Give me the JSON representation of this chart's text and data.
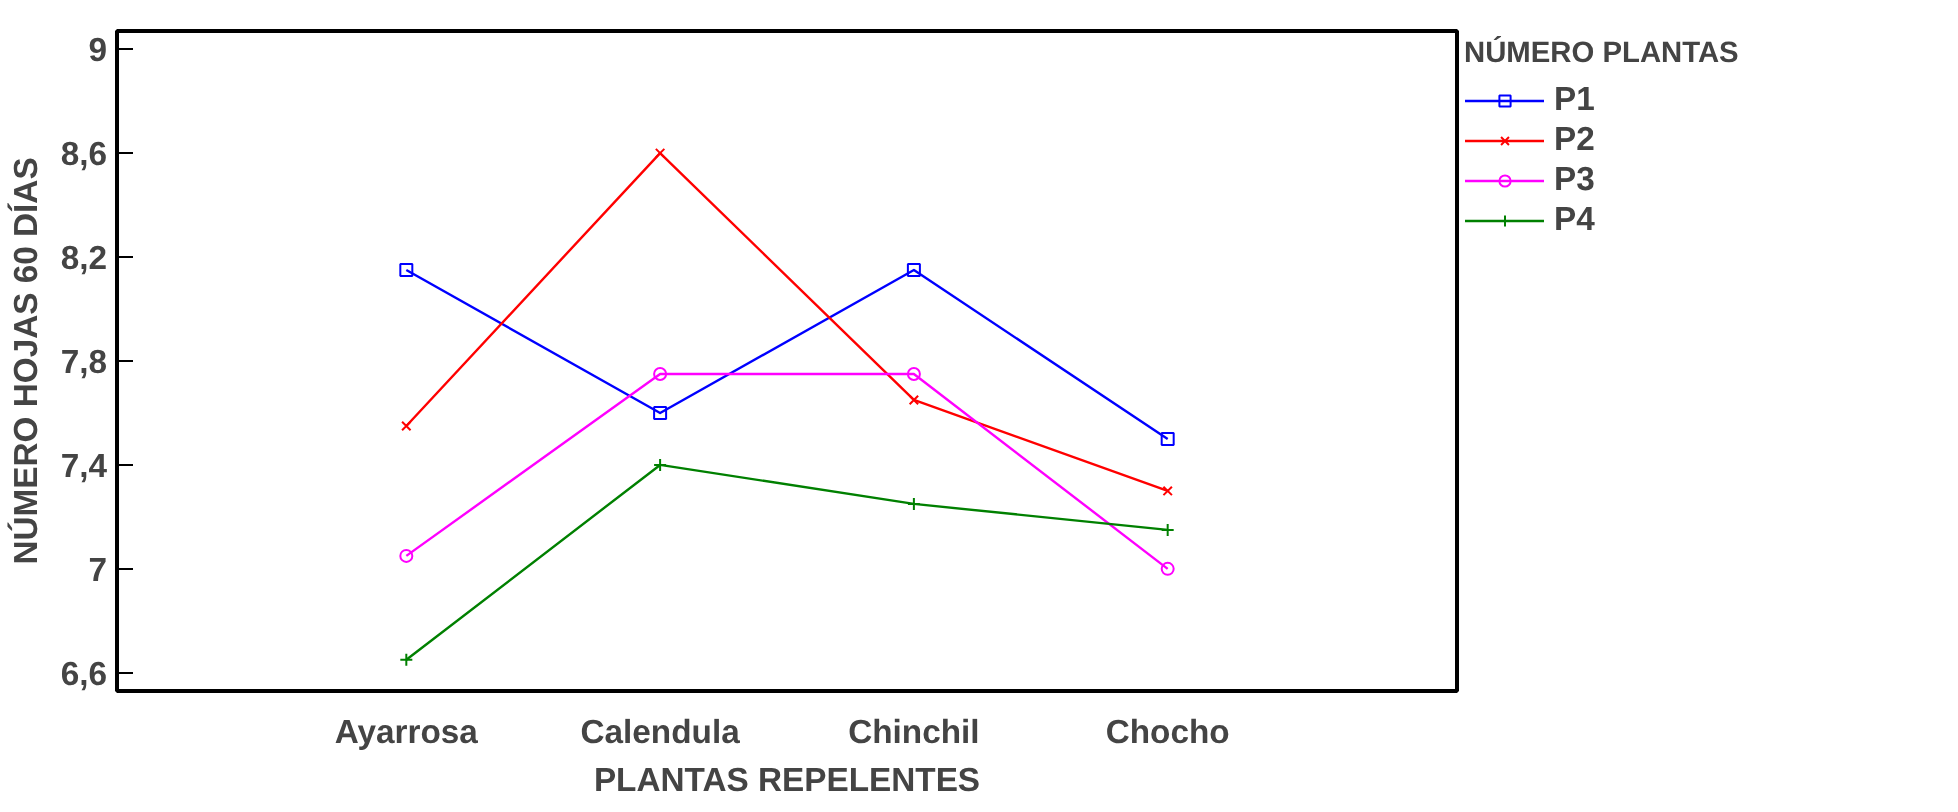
{
  "chart_data": {
    "type": "line",
    "xlabel": "PLANTAS REPELENTES",
    "ylabel": "NÚMERO HOJAS 60 DÍAS",
    "legend_title": "NÚMERO PLANTAS",
    "categories": [
      "Ayarrosa",
      "Calendula",
      "Chinchil",
      "Chocho"
    ],
    "series": [
      {
        "name": "P1",
        "color": "#0000ff",
        "marker": "square",
        "values": [
          8.15,
          7.6,
          8.15,
          7.5
        ]
      },
      {
        "name": "P2",
        "color": "#ff0000",
        "marker": "x",
        "values": [
          7.55,
          8.6,
          7.65,
          7.3
        ]
      },
      {
        "name": "P3",
        "color": "#ff00ff",
        "marker": "circle",
        "values": [
          7.05,
          7.75,
          7.75,
          7.0
        ]
      },
      {
        "name": "P4",
        "color": "#008000",
        "marker": "cross",
        "values": [
          6.65,
          7.4,
          7.25,
          7.15
        ]
      }
    ],
    "ylim": [
      6.53,
      9.07
    ],
    "yticks": [
      {
        "value": 6.6,
        "label": "6,6"
      },
      7,
      {
        "value": 7.4,
        "label": "7,4"
      },
      {
        "value": 7.8,
        "label": "7,8"
      },
      {
        "value": 8.2,
        "label": "8,2"
      },
      {
        "value": 8.6,
        "label": "8,6"
      },
      9
    ],
    "legend": "top right",
    "grid": false,
    "line_style": "solid"
  }
}
